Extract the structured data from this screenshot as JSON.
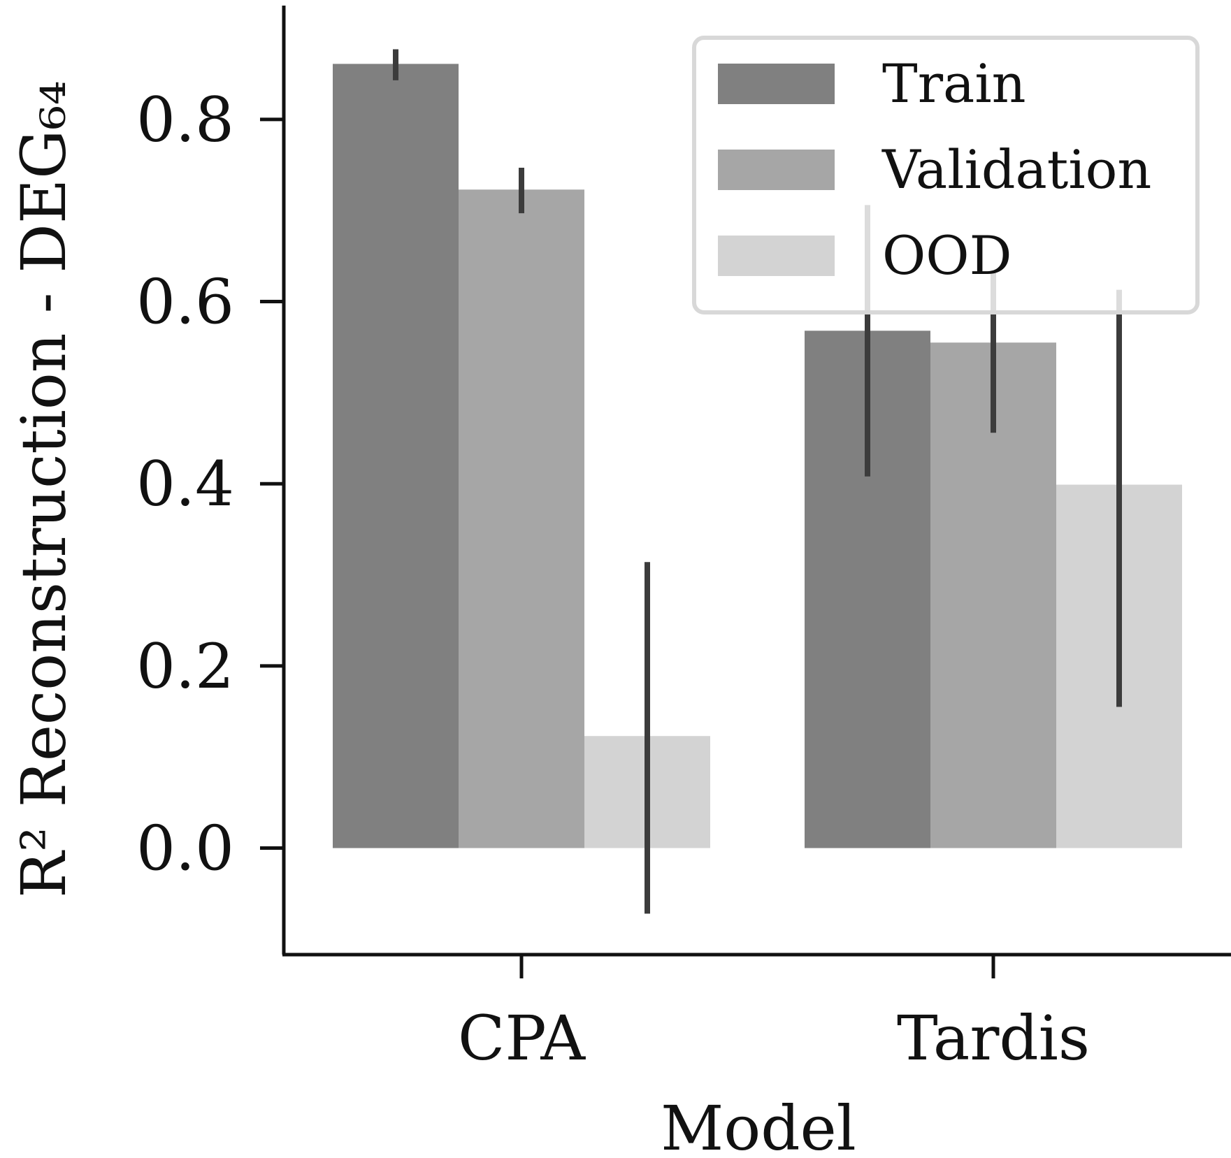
{
  "chart_data": {
    "type": "bar",
    "xlabel": "Model",
    "ylabel": "R² Reconstruction - DEG₆₄",
    "categories": [
      "CPA",
      "Tardis"
    ],
    "series": [
      {
        "name": "Train",
        "color": "#808080",
        "values": [
          0.861,
          0.568
        ],
        "err_low": [
          0.843,
          0.408
        ],
        "err_high": [
          0.877,
          0.706
        ]
      },
      {
        "name": "Validation",
        "color": "#a6a6a6",
        "values": [
          0.723,
          0.555
        ],
        "err_low": [
          0.697,
          0.456
        ],
        "err_high": [
          0.747,
          0.634
        ]
      },
      {
        "name": "OOD",
        "color": "#d3d3d3",
        "values": [
          0.123,
          0.399
        ],
        "err_low": [
          -0.072,
          0.155
        ],
        "err_high": [
          0.314,
          0.613
        ]
      }
    ],
    "yticks": [
      "0.0",
      "0.2",
      "0.4",
      "0.6",
      "0.8"
    ],
    "ytick_values": [
      0.0,
      0.2,
      0.4,
      0.6,
      0.8
    ],
    "ylim": [
      -0.117,
      0.925
    ],
    "grid": false,
    "legend_position": "top-right",
    "error_color": "#3c3c3c"
  }
}
